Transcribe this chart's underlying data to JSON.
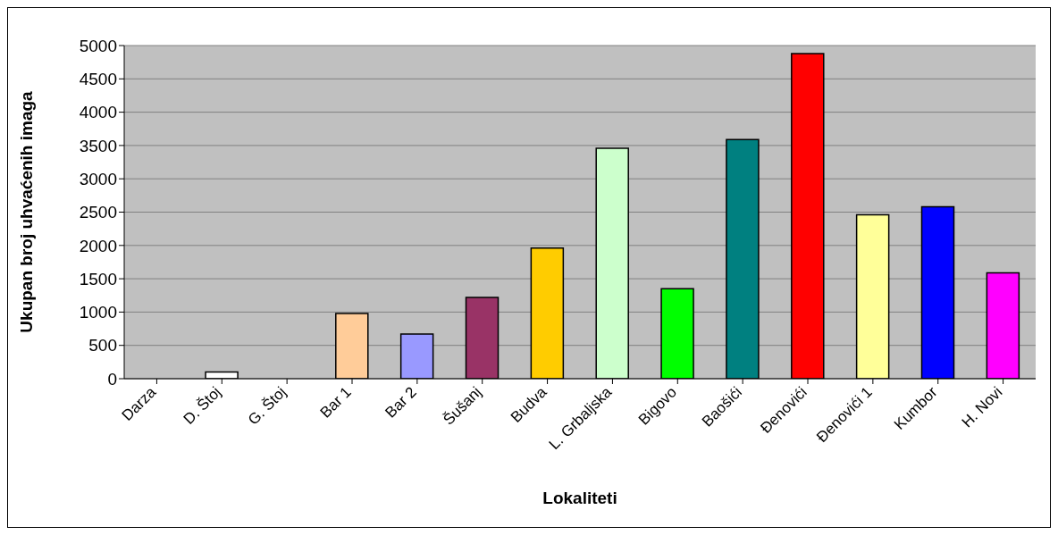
{
  "chart_data": {
    "type": "bar",
    "xlabel": "Lokaliteti",
    "ylabel": "Ukupan broj uhvaćenih imaga",
    "categories": [
      "Darza",
      "D. Štoj",
      "G. Štoj",
      "Bar 1",
      "Bar 2",
      "Šušanj",
      "Budva",
      "L. Grbaljska",
      "Bigovo",
      "Baošići",
      "Đenovići",
      "Đenovići 1",
      "Kumbor",
      "H. Novi"
    ],
    "values": [
      0,
      100,
      0,
      980,
      670,
      1220,
      1960,
      3460,
      1350,
      3590,
      4880,
      2460,
      2580,
      1590
    ],
    "colors": [
      null,
      "#ffffff",
      null,
      "#ffcc99",
      "#9999ff",
      "#993366",
      "#ffcc00",
      "#ccffcc",
      "#00ff00",
      "#008080",
      "#ff0000",
      "#ffff99",
      "#0000ff",
      "#ff00ff"
    ],
    "ylim": [
      0,
      5000
    ],
    "yticks": [
      0,
      500,
      1000,
      1500,
      2000,
      2500,
      3000,
      3500,
      4000,
      4500,
      5000
    ],
    "grid": "y"
  }
}
